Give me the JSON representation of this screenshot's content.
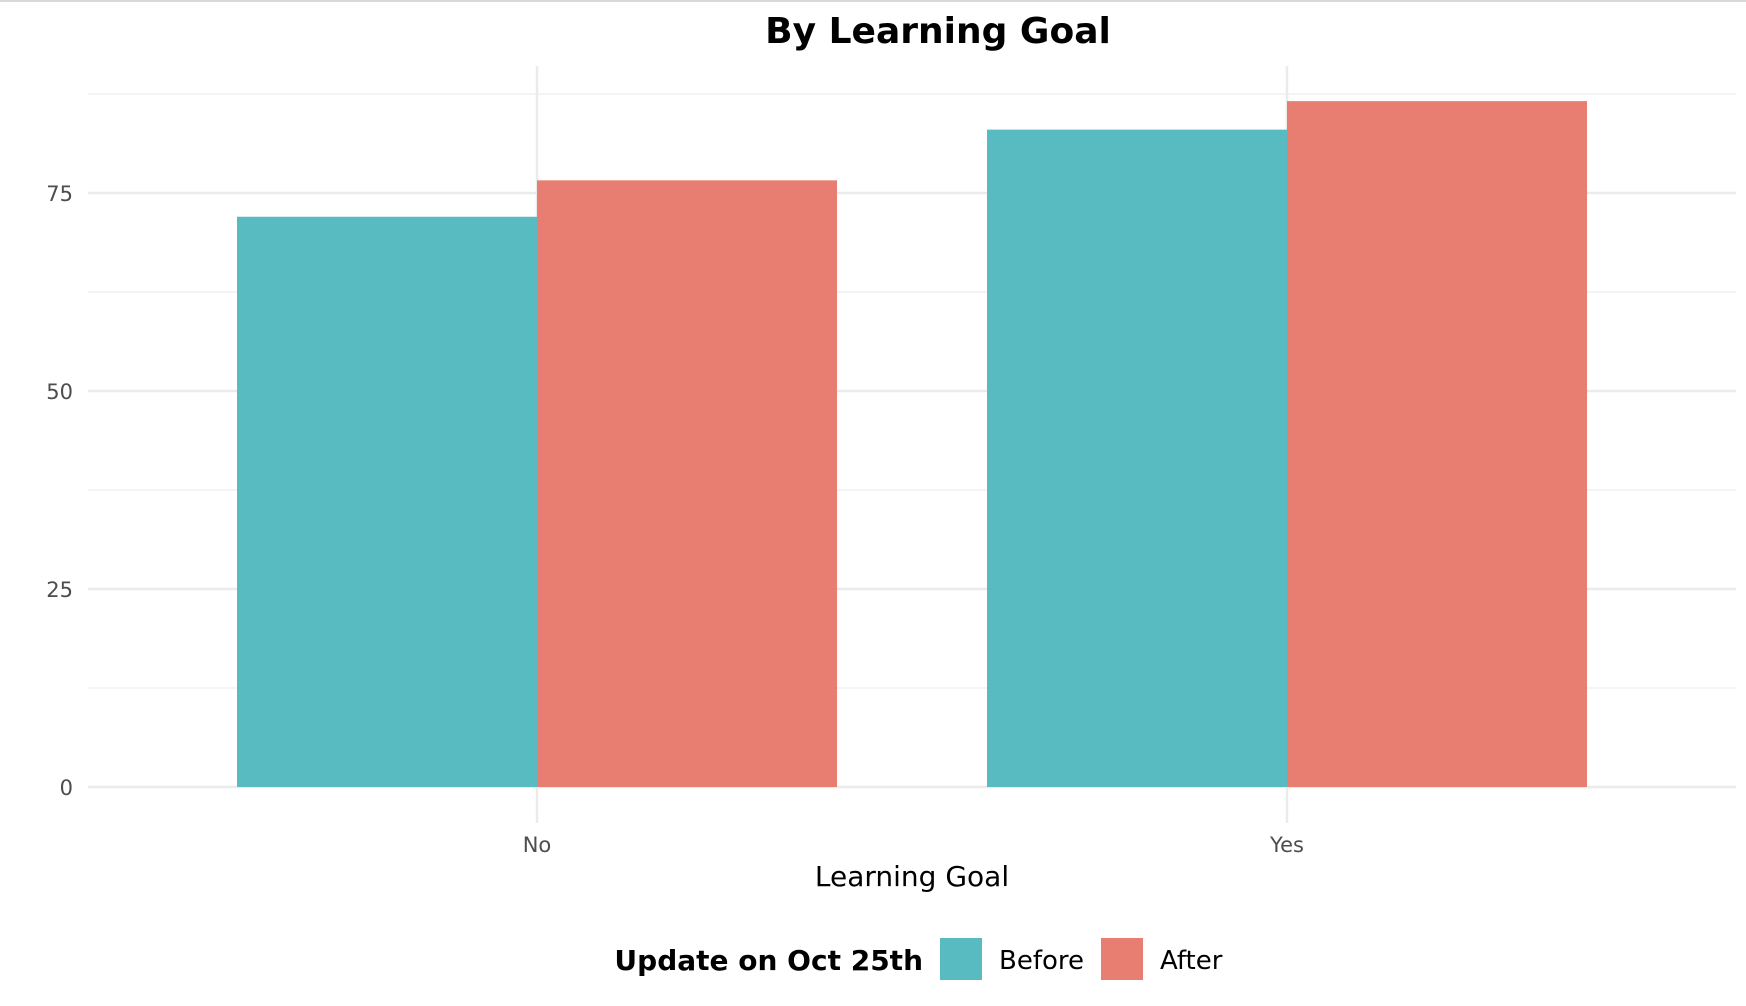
{
  "chart_data": {
    "type": "bar",
    "title": "By Learning Goal",
    "xlabel": "Learning Goal",
    "ylabel": "",
    "categories": [
      "No",
      "Yes"
    ],
    "series": [
      {
        "name": "Before",
        "color": "#57BBC1",
        "values": [
          72,
          83
        ]
      },
      {
        "name": "After",
        "color": "#E87E72",
        "values": [
          76.6,
          86.6
        ]
      }
    ],
    "ylim": [
      0,
      90
    ],
    "yticks": [
      0,
      25,
      50,
      75
    ],
    "ytick_labels": [
      "0",
      "25",
      "50",
      "75"
    ],
    "grid": true,
    "legend": {
      "title": "Update on Oct 25th",
      "position": "bottom"
    }
  }
}
